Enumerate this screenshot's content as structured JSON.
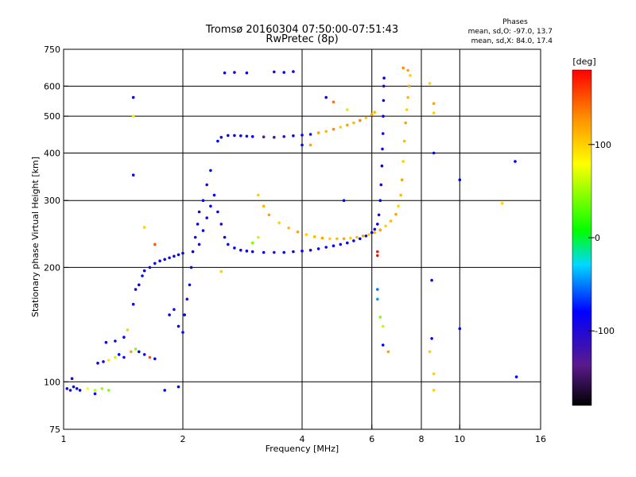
{
  "chart_data": {
    "type": "scatter",
    "title": "Tromsø 20160304 07:50:00-07:51:43",
    "subtitle": "RwPretec (8p)",
    "xlabel": "Frequency [MHz]",
    "ylabel": "Stationary phase Virtual Height [km]",
    "x_scale": "log",
    "y_scale": "log",
    "xlim": [
      1,
      16
    ],
    "ylim": [
      75,
      750
    ],
    "x_ticks": [
      1,
      2,
      4,
      6,
      8,
      10,
      16
    ],
    "x_tick_labels": [
      "1",
      "2",
      "4",
      "6",
      "8",
      "10",
      "16"
    ],
    "y_ticks": [
      75,
      100,
      200,
      300,
      400,
      500,
      600,
      750
    ],
    "y_tick_labels": [
      "75",
      "100",
      "200",
      "300",
      "400",
      "500",
      "600",
      "750"
    ],
    "grid": true,
    "stats": {
      "heading": "Phases",
      "o_line": "mean, sd,O: -97.0, 13.7",
      "x_line": "mean, sd,X:  84.0, 17.4"
    },
    "colorbar": {
      "label": "[deg]",
      "range": [
        -180,
        180
      ],
      "ticks": [
        100,
        0,
        -100
      ],
      "tick_labels": [
        "100",
        "0",
        "-100"
      ]
    },
    "series": [
      {
        "name": "",
        "points": [
          [
            1.02,
            96,
            -100
          ],
          [
            1.04,
            95,
            -110
          ],
          [
            1.06,
            97,
            -95
          ],
          [
            1.08,
            96,
            -105
          ],
          [
            1.1,
            95,
            -100
          ],
          [
            1.15,
            96,
            80
          ],
          [
            1.2,
            95,
            60
          ],
          [
            1.25,
            96,
            50
          ],
          [
            1.3,
            95,
            40
          ],
          [
            1.05,
            102,
            -110
          ],
          [
            1.2,
            93,
            -100
          ],
          [
            1.22,
            112,
            -100
          ],
          [
            1.26,
            113,
            -105
          ],
          [
            1.3,
            114,
            90
          ],
          [
            1.35,
            116,
            60
          ],
          [
            1.38,
            118,
            -100
          ],
          [
            1.42,
            116,
            -110
          ],
          [
            1.48,
            120,
            120
          ],
          [
            1.52,
            122,
            40
          ],
          [
            1.55,
            120,
            -100
          ],
          [
            1.6,
            118,
            -110
          ],
          [
            1.65,
            116,
            150
          ],
          [
            1.7,
            115,
            -100
          ],
          [
            1.28,
            127,
            -100
          ],
          [
            1.35,
            128,
            -105
          ],
          [
            1.42,
            131,
            -100
          ],
          [
            1.45,
            137,
            100
          ],
          [
            1.5,
            160,
            -100
          ],
          [
            1.52,
            175,
            -110
          ],
          [
            1.55,
            180,
            -100
          ],
          [
            1.58,
            190,
            -105
          ],
          [
            1.6,
            196,
            -100
          ],
          [
            1.65,
            200,
            -110
          ],
          [
            1.7,
            205,
            -100
          ],
          [
            1.75,
            208,
            -105
          ],
          [
            1.8,
            210,
            -100
          ],
          [
            1.85,
            212,
            -110
          ],
          [
            1.9,
            214,
            -100
          ],
          [
            1.95,
            216,
            -105
          ],
          [
            2.0,
            218,
            -100
          ],
          [
            1.85,
            150,
            -100
          ],
          [
            1.9,
            155,
            -110
          ],
          [
            1.95,
            140,
            -100
          ],
          [
            2.0,
            135,
            -105
          ],
          [
            2.02,
            150,
            -100
          ],
          [
            2.05,
            165,
            -110
          ],
          [
            2.08,
            180,
            -100
          ],
          [
            2.1,
            200,
            -105
          ],
          [
            2.12,
            220,
            -100
          ],
          [
            2.15,
            240,
            -110
          ],
          [
            2.18,
            260,
            -100
          ],
          [
            2.2,
            280,
            -105
          ],
          [
            2.25,
            300,
            -100
          ],
          [
            2.3,
            330,
            -110
          ],
          [
            2.35,
            360,
            -100
          ],
          [
            2.2,
            230,
            -105
          ],
          [
            2.25,
            250,
            -100
          ],
          [
            2.3,
            270,
            -110
          ],
          [
            2.35,
            290,
            -100
          ],
          [
            2.4,
            310,
            -105
          ],
          [
            2.45,
            280,
            -100
          ],
          [
            2.5,
            260,
            -110
          ],
          [
            2.55,
            240,
            -100
          ],
          [
            2.6,
            230,
            -105
          ],
          [
            2.7,
            225,
            -100
          ],
          [
            2.8,
            222,
            -110
          ],
          [
            2.9,
            221,
            -100
          ],
          [
            3.0,
            220,
            -105
          ],
          [
            3.2,
            219,
            -100
          ],
          [
            3.4,
            219,
            -110
          ],
          [
            3.6,
            219,
            -100
          ],
          [
            3.8,
            220,
            -105
          ],
          [
            4.0,
            221,
            -100
          ],
          [
            4.2,
            222,
            -110
          ],
          [
            4.4,
            224,
            -100
          ],
          [
            4.6,
            226,
            -105
          ],
          [
            4.8,
            228,
            -100
          ],
          [
            5.0,
            230,
            -110
          ],
          [
            5.2,
            232,
            -100
          ],
          [
            5.4,
            235,
            -105
          ],
          [
            5.6,
            238,
            -100
          ],
          [
            5.8,
            242,
            -110
          ],
          [
            6.0,
            247,
            -100
          ],
          [
            6.1,
            252,
            -105
          ],
          [
            6.2,
            260,
            -100
          ],
          [
            6.25,
            275,
            -110
          ],
          [
            6.3,
            300,
            -100
          ],
          [
            6.33,
            330,
            -105
          ],
          [
            6.36,
            370,
            -100
          ],
          [
            6.38,
            410,
            -110
          ],
          [
            6.4,
            450,
            -100
          ],
          [
            6.41,
            500,
            -105
          ],
          [
            6.42,
            550,
            -100
          ],
          [
            6.43,
            600,
            -110
          ],
          [
            6.44,
            630,
            -100
          ],
          [
            2.45,
            430,
            -100
          ],
          [
            2.5,
            440,
            -110
          ],
          [
            2.6,
            445,
            -100
          ],
          [
            2.7,
            445,
            -105
          ],
          [
            2.8,
            444,
            -100
          ],
          [
            2.9,
            443,
            -110
          ],
          [
            3.0,
            442,
            -100
          ],
          [
            3.2,
            441,
            -140
          ],
          [
            3.4,
            440,
            -130
          ],
          [
            3.6,
            442,
            -120
          ],
          [
            3.8,
            444,
            -100
          ],
          [
            4.0,
            446,
            -105
          ],
          [
            4.2,
            448,
            -100
          ],
          [
            4.4,
            452,
            120
          ],
          [
            4.6,
            456,
            110
          ],
          [
            4.8,
            462,
            130
          ],
          [
            5.0,
            468,
            100
          ],
          [
            5.2,
            474,
            120
          ],
          [
            5.4,
            480,
            110
          ],
          [
            5.6,
            487,
            130
          ],
          [
            5.8,
            495,
            100
          ],
          [
            6.0,
            505,
            120
          ],
          [
            6.1,
            512,
            110
          ],
          [
            3.1,
            310,
            100
          ],
          [
            3.2,
            290,
            110
          ],
          [
            3.3,
            275,
            120
          ],
          [
            3.5,
            262,
            100
          ],
          [
            3.7,
            254,
            110
          ],
          [
            3.9,
            248,
            120
          ],
          [
            4.1,
            244,
            100
          ],
          [
            4.3,
            241,
            110
          ],
          [
            4.5,
            239,
            120
          ],
          [
            4.7,
            238,
            100
          ],
          [
            4.9,
            238,
            110
          ],
          [
            5.1,
            238,
            120
          ],
          [
            5.3,
            239,
            100
          ],
          [
            5.5,
            240,
            110
          ],
          [
            5.7,
            242,
            120
          ],
          [
            5.9,
            244,
            100
          ],
          [
            6.1,
            247,
            110
          ],
          [
            6.3,
            251,
            120
          ],
          [
            6.5,
            257,
            100
          ],
          [
            6.7,
            265,
            110
          ],
          [
            6.9,
            276,
            120
          ],
          [
            7.0,
            290,
            100
          ],
          [
            7.1,
            310,
            110
          ],
          [
            7.15,
            340,
            120
          ],
          [
            7.2,
            380,
            100
          ],
          [
            7.25,
            430,
            110
          ],
          [
            7.3,
            480,
            120
          ],
          [
            7.35,
            520,
            100
          ],
          [
            7.4,
            560,
            110
          ],
          [
            7.45,
            600,
            120
          ],
          [
            7.5,
            640,
            100
          ],
          [
            2.55,
            650,
            -100
          ],
          [
            2.7,
            652,
            -110
          ],
          [
            2.9,
            650,
            -100
          ],
          [
            3.4,
            654,
            -110
          ],
          [
            3.6,
            652,
            -100
          ],
          [
            3.8,
            655,
            -105
          ],
          [
            1.5,
            560,
            -100
          ],
          [
            1.5,
            350,
            -105
          ],
          [
            1.5,
            500,
            90
          ],
          [
            4.6,
            560,
            -100
          ],
          [
            4.8,
            545,
            140
          ],
          [
            5.2,
            520,
            60
          ],
          [
            8.4,
            610,
            100
          ],
          [
            8.6,
            510,
            100
          ],
          [
            8.6,
            540,
            120
          ],
          [
            8.6,
            400,
            -100
          ],
          [
            10.0,
            340,
            -100
          ],
          [
            13.8,
            380,
            -100
          ],
          [
            12.8,
            295,
            100
          ],
          [
            8.5,
            130,
            -100
          ],
          [
            8.5,
            185,
            -105
          ],
          [
            8.4,
            120,
            100
          ],
          [
            8.6,
            105,
            100
          ],
          [
            8.6,
            95,
            100
          ],
          [
            6.2,
            175,
            -60
          ],
          [
            6.2,
            165,
            -50
          ],
          [
            6.3,
            148,
            40
          ],
          [
            6.4,
            140,
            60
          ],
          [
            6.4,
            125,
            -100
          ],
          [
            6.6,
            120,
            120
          ],
          [
            6.2,
            220,
            170
          ],
          [
            6.2,
            215,
            175
          ],
          [
            13.9,
            103,
            -100
          ],
          [
            10.0,
            138,
            -100
          ],
          [
            1.8,
            95,
            -100
          ],
          [
            1.95,
            97,
            -100
          ],
          [
            1.7,
            230,
            150
          ],
          [
            1.6,
            255,
            100
          ],
          [
            3.1,
            240,
            60
          ],
          [
            3.0,
            232,
            40
          ],
          [
            2.5,
            195,
            100
          ],
          [
            7.4,
            660,
            120
          ],
          [
            7.2,
            670,
            130
          ],
          [
            5.1,
            300,
            -100
          ],
          [
            4.0,
            420,
            -100
          ],
          [
            4.2,
            420,
            120
          ]
        ]
      }
    ]
  }
}
